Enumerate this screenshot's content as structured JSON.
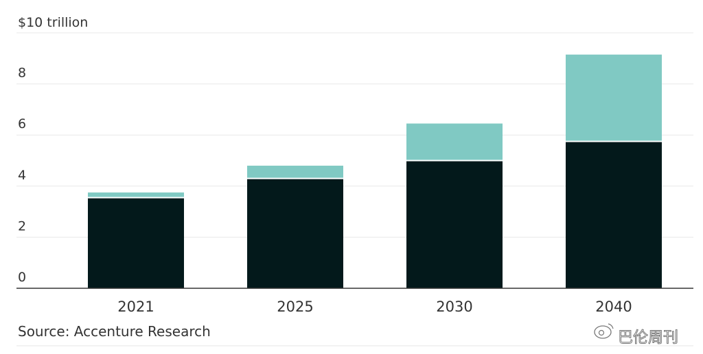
{
  "chart_data": {
    "type": "bar",
    "stacked": true,
    "categories": [
      "2021",
      "2025",
      "2030",
      "2040"
    ],
    "series": [
      {
        "values": [
          3.55,
          4.3,
          5.0,
          5.75
        ],
        "color": "#03191b"
      },
      {
        "values": [
          0.2,
          0.5,
          1.45,
          3.4
        ],
        "color": "#80c9c3"
      }
    ],
    "y_unit_label": "$10 trillion",
    "y_ticks": [
      "0",
      "2",
      "4",
      "6",
      "8"
    ],
    "ylim": [
      0,
      10
    ],
    "grid": true,
    "legend": "none"
  },
  "source": "Source: Accenture Research",
  "watermark": "巴伦周刊",
  "watermark_icon": "weibo-icon"
}
